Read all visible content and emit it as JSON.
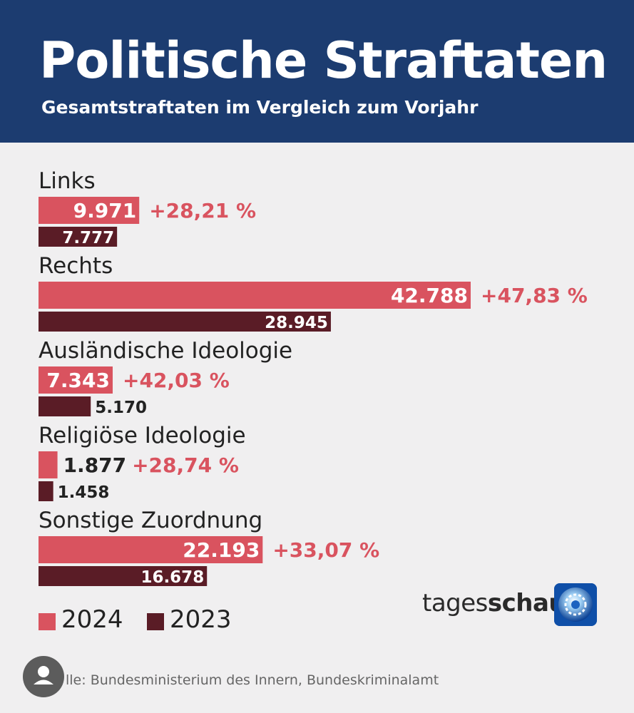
{
  "header": {
    "title": "Politische Straftaten",
    "subtitle": "Gesamtstraftaten im Vergleich zum Vorjahr"
  },
  "chart_data": {
    "type": "bar",
    "orientation": "horizontal",
    "title": "Politische Straftaten",
    "subtitle": "Gesamtstraftaten im Vergleich zum Vorjahr",
    "categories": [
      "Links",
      "Rechts",
      "Ausländische Ideologie",
      "Religiöse Ideologie",
      "Sonstige Zuordnung"
    ],
    "series": [
      {
        "name": "2024",
        "color": "#d9535f",
        "values": [
          9971,
          42788,
          7343,
          1877,
          22193
        ],
        "labels": [
          "9.971",
          "42.788",
          "7.343",
          "1.877",
          "22.193"
        ]
      },
      {
        "name": "2023",
        "color": "#5a1c26",
        "values": [
          7777,
          28945,
          5170,
          1458,
          16678
        ],
        "labels": [
          "7.777",
          "28.945",
          "5.170",
          "1.458",
          "16.678"
        ]
      }
    ],
    "changes": [
      "+28,21 %",
      "+47,83 %",
      "+42,03 %",
      "+28,74 %",
      "+33,07 %"
    ],
    "change_color": "#d9535f",
    "xlim": [
      0,
      42788
    ],
    "grid": false,
    "legend_position": "bottom-left"
  },
  "legend": {
    "label_2024": "2024",
    "label_2023": "2023"
  },
  "brand": {
    "part1": "tages",
    "part2": "schau"
  },
  "source": "lle: Bundesministerium des Innern, Bundeskriminalamt",
  "icons": {
    "avatar": "user-avatar-icon",
    "logo": "tagesschau-logo-icon"
  }
}
